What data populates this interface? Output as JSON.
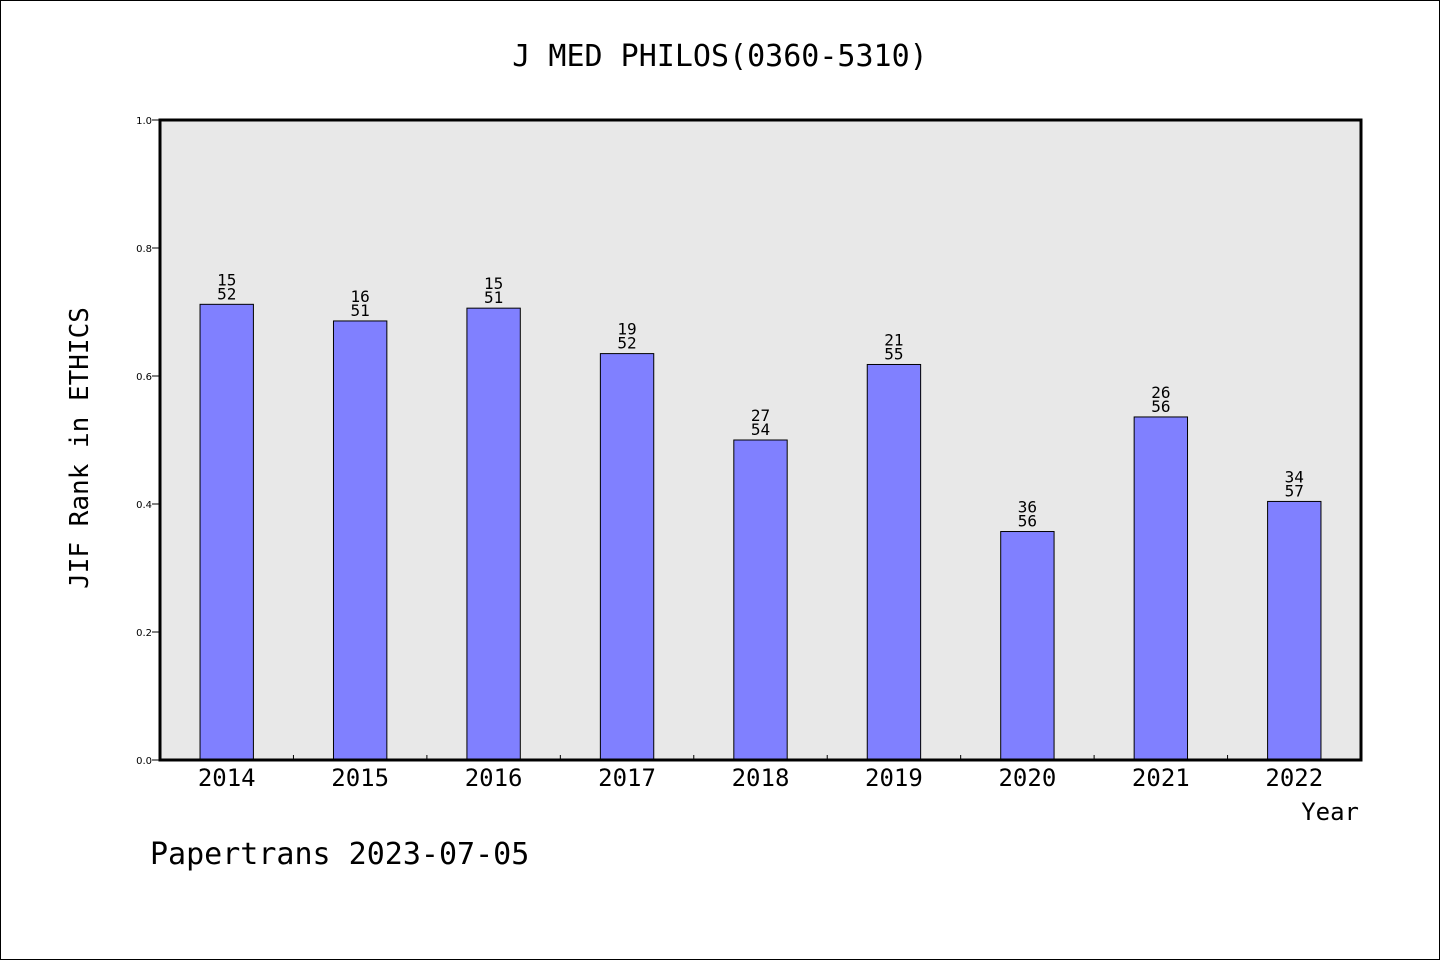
{
  "chart_data": {
    "type": "bar",
    "title": "J MED PHILOS(0360-5310)",
    "ylabel": "JIF Rank in ETHICS",
    "xlabel": "Year",
    "ylim": [
      0,
      1.0
    ],
    "yticks": [
      "0.0",
      "0.2",
      "0.4",
      "0.6",
      "0.8",
      "1.0"
    ],
    "categories": [
      "2014",
      "2015",
      "2016",
      "2017",
      "2018",
      "2019",
      "2020",
      "2021",
      "2022"
    ],
    "values": [
      0.712,
      0.686,
      0.706,
      0.635,
      0.5,
      0.618,
      0.357,
      0.536,
      0.404
    ],
    "labels": [
      {
        "rank": "15",
        "total": "52"
      },
      {
        "rank": "16",
        "total": "51"
      },
      {
        "rank": "15",
        "total": "51"
      },
      {
        "rank": "19",
        "total": "52"
      },
      {
        "rank": "27",
        "total": "54"
      },
      {
        "rank": "21",
        "total": "55"
      },
      {
        "rank": "36",
        "total": "56"
      },
      {
        "rank": "26",
        "total": "56"
      },
      {
        "rank": "34",
        "total": "57"
      }
    ],
    "grid": false,
    "colors": {
      "bar": "#8080ff",
      "plot_bg": "#e8e8e8"
    }
  },
  "footer": "Papertrans 2023-07-05"
}
